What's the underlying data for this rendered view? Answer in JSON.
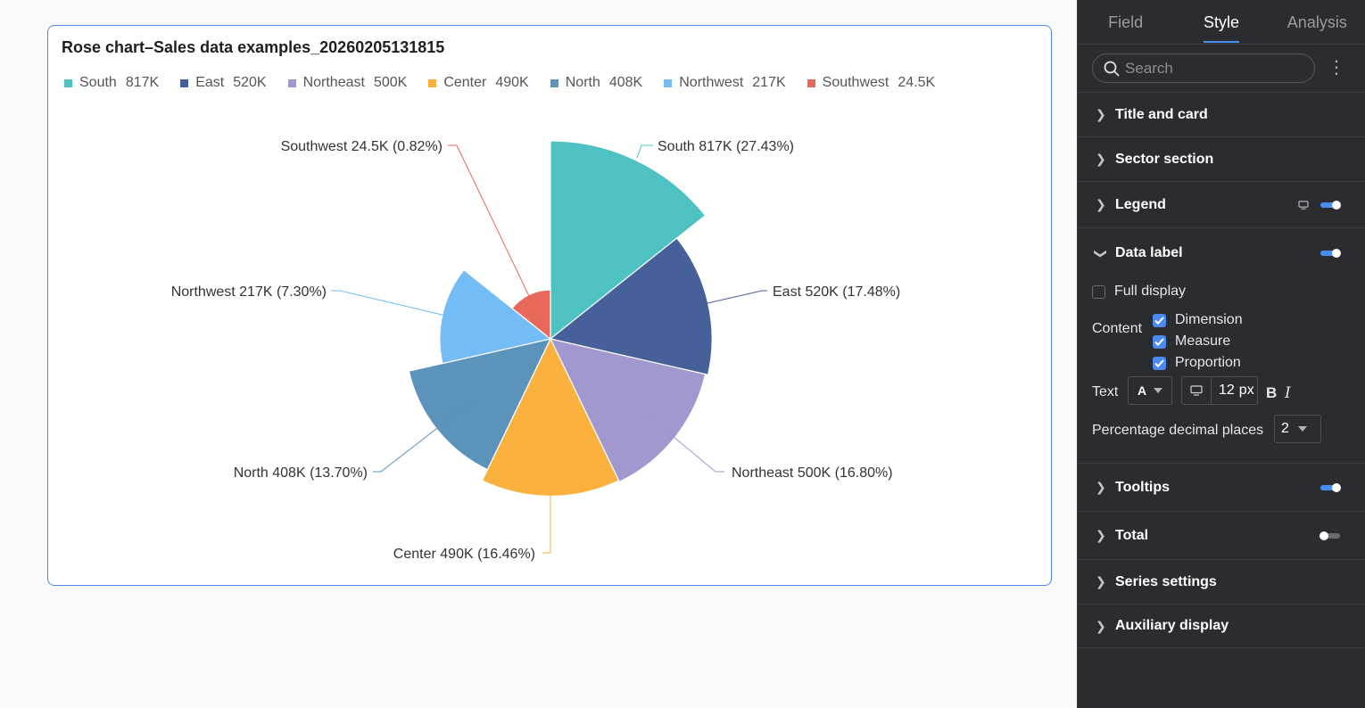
{
  "chart_card": {
    "title": "Rose chart–Sales data examples_20260205131815"
  },
  "chart_data": {
    "type": "rose",
    "title": "Rose chart–Sales data examples_20260205131815",
    "categories": [
      "South",
      "East",
      "Northeast",
      "Center",
      "North",
      "Northwest",
      "Southwest"
    ],
    "values": [
      817000,
      520000,
      500000,
      490000,
      408000,
      217000,
      24500
    ],
    "value_labels": [
      "817K",
      "520K",
      "500K",
      "490K",
      "408K",
      "217K",
      "24.5K"
    ],
    "percent_labels": [
      "27.43%",
      "17.48%",
      "16.80%",
      "16.46%",
      "13.70%",
      "7.30%",
      "0.82%"
    ],
    "colors": [
      "#4ec1c2",
      "#46619a",
      "#a198d0",
      "#fbb13e",
      "#5b93bb",
      "#74bcf5",
      "#e8685a"
    ],
    "legend_position": "top-left",
    "label_format": "{dimension} {measure} ({proportion})"
  },
  "panel": {
    "tabs": [
      "Field",
      "Style",
      "Analysis"
    ],
    "search_placeholder": "Search",
    "sections": {
      "title_card": "Title and card",
      "sector": "Sector section",
      "legend": "Legend",
      "data_label": "Data label",
      "tooltips": "Tooltips",
      "total": "Total",
      "series": "Series settings",
      "auxiliary": "Auxiliary display"
    },
    "data_label": {
      "full_display": "Full display",
      "content_label": "Content",
      "dimension": "Dimension",
      "measure": "Measure",
      "proportion": "Proportion",
      "text_label": "Text",
      "text_color_glyph": "A",
      "font_size": "12",
      "font_unit": "px",
      "bold_glyph": "B",
      "italic_glyph": "I",
      "decimal_label": "Percentage decimal places",
      "decimal_value": "2"
    }
  }
}
